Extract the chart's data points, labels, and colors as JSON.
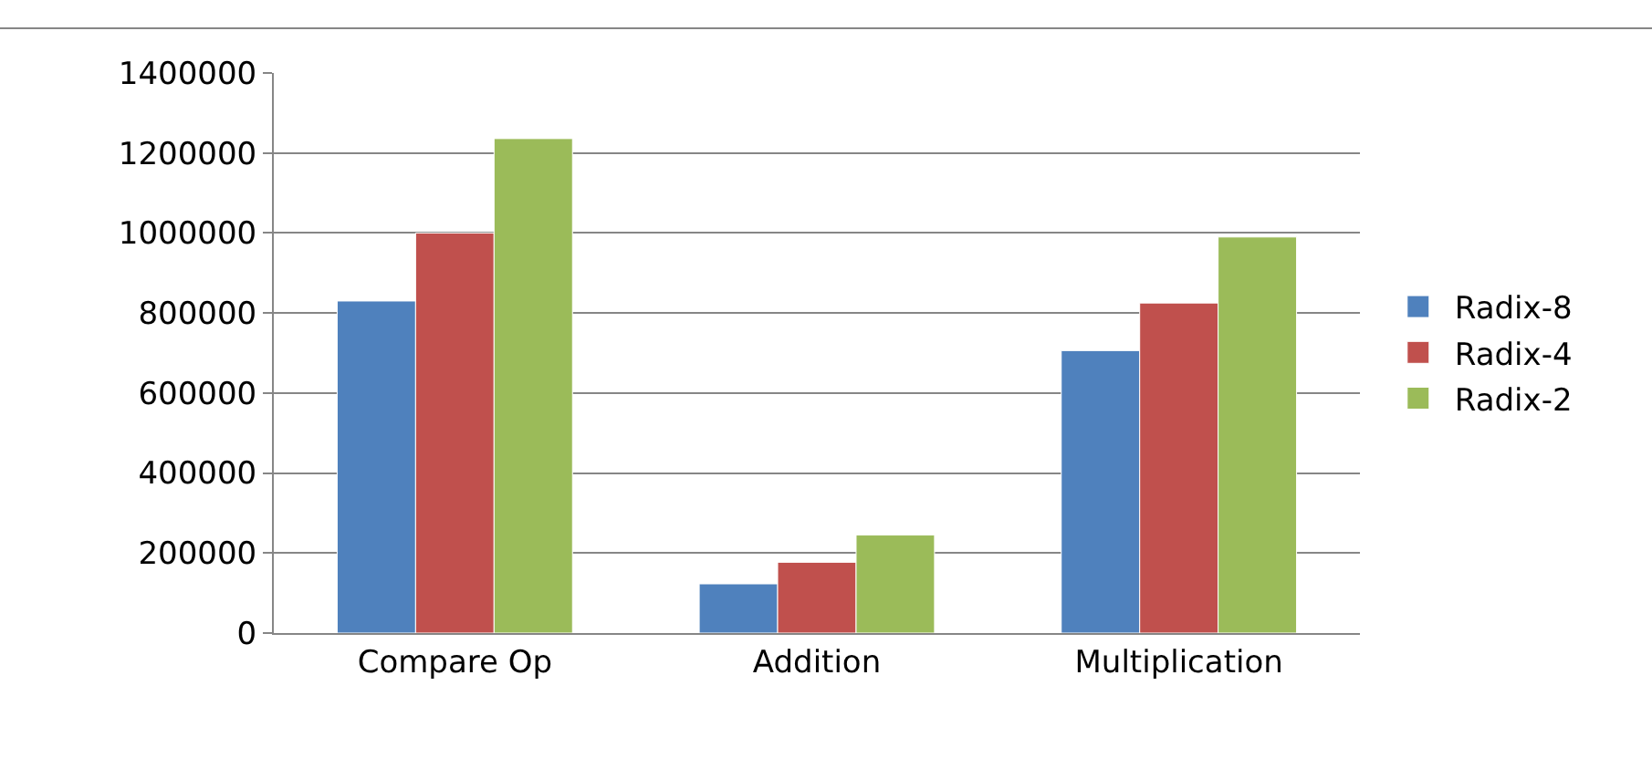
{
  "chart_data": {
    "type": "bar",
    "categories": [
      "Compare Op",
      "Addition",
      "Multiplication"
    ],
    "series": [
      {
        "name": "Radix-8",
        "color": "#4f81bd",
        "values": [
          830000,
          123000,
          706000
        ]
      },
      {
        "name": "Radix-4",
        "color": "#c0504d",
        "values": [
          1000000,
          177000,
          825000
        ]
      },
      {
        "name": "Radix-2",
        "color": "#9bbb59",
        "values": [
          1236000,
          245000,
          990000
        ]
      }
    ],
    "ylim": [
      0,
      1400000
    ],
    "yticks": [
      0,
      200000,
      400000,
      600000,
      800000,
      1000000,
      1200000,
      1400000
    ],
    "grid": "y",
    "legend": "right"
  }
}
